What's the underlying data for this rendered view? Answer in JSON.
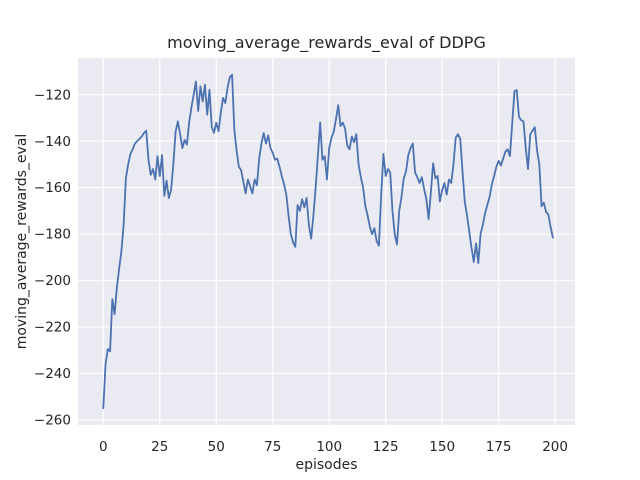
{
  "figure": {
    "background": "#ffffff"
  },
  "chart_data": {
    "type": "line",
    "title": "moving_average_rewards_eval of DDPG",
    "xlabel": "episodes",
    "ylabel": "moving_average_rewards_eval",
    "legend_position": "none",
    "grid": true,
    "style": {
      "axes_background": "#eaeaf2",
      "grid_color": "#ffffff",
      "line_color": "#4c72b0",
      "text_color": "#262626"
    },
    "x_ticks": [
      0,
      25,
      50,
      75,
      100,
      125,
      150,
      175,
      200
    ],
    "y_ticks": [
      -120,
      -140,
      -160,
      -180,
      -200,
      -220,
      -240,
      -260
    ],
    "xlim": [
      -11.2,
      208.8
    ],
    "ylim": [
      -262.2,
      -104.2
    ],
    "series": [
      {
        "name": "moving_average_rewards_eval",
        "x_start": 0,
        "x_step": 1,
        "values": [
          -255,
          -236,
          -229.5,
          -230.5,
          -208,
          -214.5,
          -203,
          -195,
          -187.5,
          -176,
          -156,
          -150,
          -145.5,
          -143.5,
          -141,
          -140,
          -139,
          -138,
          -136.5,
          -135.5,
          -148,
          -154.5,
          -152,
          -156.5,
          -146.5,
          -155,
          -146,
          -163.5,
          -157,
          -164.5,
          -161,
          -150,
          -136,
          -131.5,
          -137,
          -143,
          -139.5,
          -141.5,
          -132,
          -125.5,
          -120,
          -114.3,
          -127,
          -116.4,
          -122.9,
          -115.7,
          -128.6,
          -117.9,
          -134,
          -136.4,
          -132.1,
          -135.7,
          -128,
          -121.4,
          -123.6,
          -117,
          -112.5,
          -111.4,
          -135,
          -144,
          -151,
          -152.5,
          -157.5,
          -162.5,
          -156.5,
          -159.5,
          -162.5,
          -156.5,
          -159,
          -147.5,
          -141,
          -136.5,
          -141,
          -137.5,
          -143,
          -145,
          -148,
          -147.5,
          -151,
          -155,
          -158.5,
          -163,
          -172,
          -180,
          -183.5,
          -185.5,
          -167.5,
          -170,
          -165,
          -168.5,
          -164.5,
          -176,
          -182,
          -172,
          -160,
          -146,
          -132,
          -148,
          -146.5,
          -156.5,
          -143,
          -138.5,
          -136,
          -130.5,
          -124.5,
          -133.5,
          -132,
          -134.5,
          -142,
          -143.5,
          -138,
          -140.5,
          -137,
          -150,
          -155.5,
          -160,
          -168,
          -172,
          -177,
          -180,
          -177.5,
          -183,
          -185,
          -163,
          -145.5,
          -155,
          -152,
          -153.5,
          -170,
          -180,
          -184.5,
          -170,
          -164,
          -156,
          -153,
          -146,
          -143,
          -141,
          -153.5,
          -155.5,
          -158,
          -155.5,
          -160.5,
          -165,
          -173.5,
          -162,
          -149.5,
          -156,
          -155,
          -166,
          -161,
          -158,
          -163,
          -156.5,
          -158,
          -150,
          -138.5,
          -137,
          -139,
          -153,
          -166,
          -172,
          -179,
          -186,
          -192,
          -184,
          -192.5,
          -180,
          -176,
          -171,
          -167.5,
          -164,
          -158.5,
          -155,
          -151,
          -148.5,
          -150.5,
          -147.5,
          -144.5,
          -143.5,
          -146.5,
          -132.5,
          -118.5,
          -118,
          -129.5,
          -131,
          -131.5,
          -143,
          -152,
          -137,
          -135.5,
          -134,
          -144,
          -150,
          -168,
          -166.5,
          -170.5,
          -171.5,
          -177,
          -181.5
        ]
      }
    ]
  }
}
